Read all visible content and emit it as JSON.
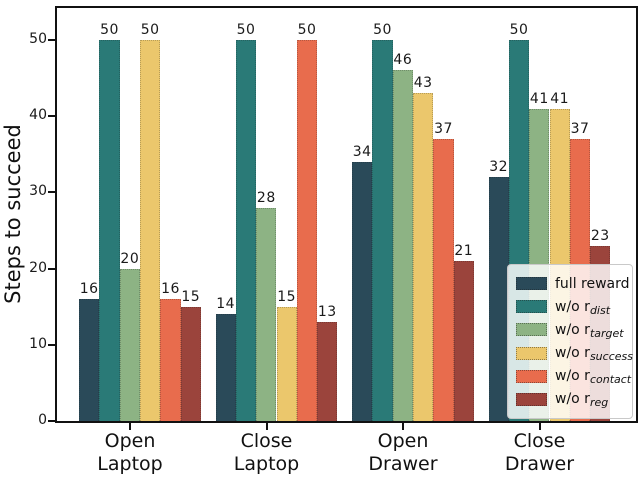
{
  "figure": {
    "background": "#ffffff"
  },
  "chart_data": {
    "type": "bar",
    "title": "",
    "xlabel": "",
    "ylabel": "Steps to succeed",
    "ylim": [
      0,
      54
    ],
    "yticks": [
      0,
      10,
      20,
      30,
      40,
      50
    ],
    "categories": [
      "Open Laptop",
      "Close Laptop",
      "Open Drawer",
      "Close Drawer"
    ],
    "grid": false,
    "bar_value_labels": true,
    "legend_position": "lower right",
    "series": [
      {
        "label": "full reward",
        "label_sub": "",
        "color": "#2a4a59",
        "values": [
          16,
          14,
          34,
          32
        ]
      },
      {
        "label": "w/o r",
        "label_sub": "dist",
        "color": "#2a7a77",
        "values": [
          50,
          50,
          50,
          50
        ]
      },
      {
        "label": "w/o r",
        "label_sub": "target",
        "color": "#8db384",
        "values": [
          20,
          28,
          46,
          41
        ]
      },
      {
        "label": "w/o r",
        "label_sub": "success",
        "color": "#ebc76c",
        "values": [
          50,
          15,
          43,
          41
        ]
      },
      {
        "label": "w/o r",
        "label_sub": "contact",
        "color": "#e86c4d",
        "values": [
          16,
          50,
          37,
          37
        ]
      },
      {
        "label": "w/o r",
        "label_sub": "reg",
        "color": "#9b443c",
        "values": [
          15,
          13,
          21,
          23
        ]
      }
    ]
  }
}
